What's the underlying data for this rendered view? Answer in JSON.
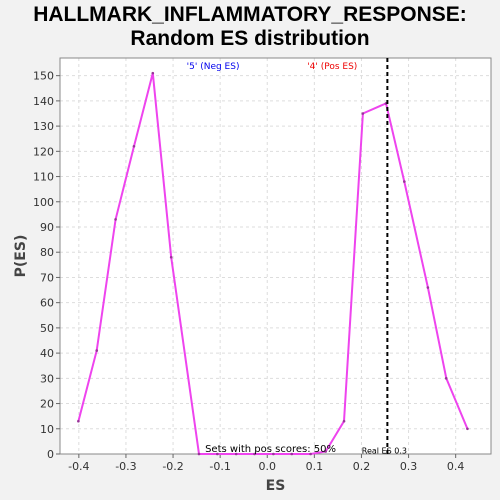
{
  "chart_data": {
    "type": "line",
    "title_lines": [
      "HALLMARK_INFLAMMATORY_RESPONSE:",
      "Random ES distribution"
    ],
    "xlabel": "ES",
    "ylabel": "P(ES)",
    "xlim": [
      -0.44,
      0.475
    ],
    "ylim": [
      0,
      157
    ],
    "xticks": [
      -0.4,
      -0.3,
      -0.2,
      -0.1,
      0.0,
      0.1,
      0.2,
      0.3,
      0.4
    ],
    "xtick_labels": [
      "-0.4",
      "-0.3",
      "-0.2",
      "-0.1",
      "0.0",
      "0.1",
      "0.2",
      "0.3",
      "0.4"
    ],
    "yticks": [
      0,
      10,
      20,
      30,
      40,
      50,
      60,
      70,
      80,
      90,
      100,
      110,
      120,
      130,
      140,
      150
    ],
    "grid": true,
    "line_color": "#ee44ee",
    "series": [
      {
        "x": [
          -0.401,
          -0.362,
          -0.322,
          -0.283,
          -0.243,
          -0.204,
          -0.145,
          -0.106,
          -0.066,
          -0.027,
          0.013,
          0.052,
          0.092,
          0.124,
          0.163,
          0.203,
          0.252,
          0.291,
          0.341,
          0.38,
          0.425
        ],
        "values": [
          13,
          41,
          93,
          122,
          151,
          78,
          0,
          0,
          0,
          0,
          0,
          0,
          0,
          1,
          13,
          135,
          139,
          108,
          66,
          30,
          10
        ]
      }
    ],
    "real_es": 0.255,
    "annotations": {
      "neg_label": "'5' (Neg ES)",
      "pos_label": "'4' (Pos ES)",
      "pos_scores": "Sets with pos scores: 50%",
      "real_es": "Real ES 0.3"
    },
    "colors": {
      "neg": "#0000ee",
      "pos": "#ee0000"
    }
  }
}
